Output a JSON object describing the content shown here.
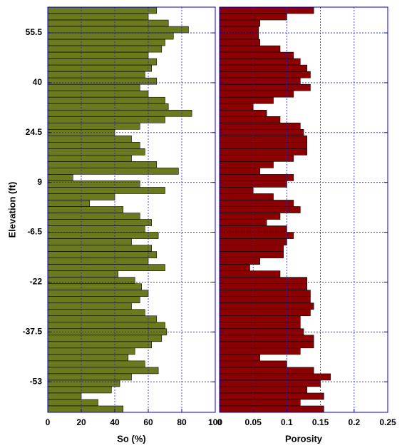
{
  "chart_data": [
    {
      "type": "bar",
      "orientation": "horizontal",
      "x_label": "So (%)",
      "y_label": "Elevation (ft)",
      "y": [
        62.5,
        60.5,
        58.5,
        56.5,
        54.5,
        52.5,
        50.5,
        48.5,
        46.5,
        44.5,
        42.5,
        40.5,
        38.5,
        36.5,
        34.5,
        32.5,
        30.5,
        28.5,
        26.5,
        24.5,
        22.5,
        20.5,
        18.5,
        16.5,
        14.5,
        12.5,
        10.5,
        8.5,
        6.5,
        4.5,
        2.5,
        0.5,
        -1.5,
        -3.5,
        -5.5,
        -7.5,
        -9.5,
        -11.5,
        -13.5,
        -15.5,
        -17.5,
        -19.5,
        -21.5,
        -23.5,
        -25.5,
        -27.5,
        -29.5,
        -31.5,
        -33.5,
        -35.5,
        -37.5,
        -39.5,
        -41.5,
        -43.5,
        -45.5,
        -47.5,
        -49.5,
        -51.5,
        -53.5,
        -55.5,
        -57.5,
        -59.5,
        -61.5
      ],
      "values": [
        65,
        60,
        72,
        84,
        75,
        70,
        68,
        60,
        65,
        62,
        58,
        65,
        55,
        60,
        70,
        72,
        86,
        70,
        55,
        40,
        50,
        55,
        58,
        50,
        65,
        78,
        15,
        55,
        70,
        40,
        25,
        45,
        55,
        62,
        58,
        66,
        50,
        62,
        65,
        60,
        70,
        42,
        52,
        56,
        60,
        55,
        50,
        58,
        65,
        70,
        71,
        68,
        62,
        52,
        48,
        58,
        66,
        50,
        43,
        38,
        20,
        30,
        45
      ],
      "color": "#6b7a1e",
      "xlim": [
        0,
        100
      ],
      "xticks": [
        0,
        20,
        40,
        60,
        80,
        100
      ],
      "ylim": [
        -62.5,
        63.5
      ],
      "yticks": [
        55.5,
        40,
        24.5,
        9,
        -6.5,
        -22,
        -37.5,
        -53
      ],
      "grid": true
    },
    {
      "type": "bar",
      "orientation": "horizontal",
      "x_label": "Porosity",
      "y": [
        62.5,
        60.5,
        58.5,
        56.5,
        54.5,
        52.5,
        50.5,
        48.5,
        46.5,
        44.5,
        42.5,
        40.5,
        38.5,
        36.5,
        34.5,
        32.5,
        30.5,
        28.5,
        26.5,
        24.5,
        22.5,
        20.5,
        18.5,
        16.5,
        14.5,
        12.5,
        10.5,
        8.5,
        6.5,
        4.5,
        2.5,
        0.5,
        -1.5,
        -3.5,
        -5.5,
        -7.5,
        -9.5,
        -11.5,
        -13.5,
        -15.5,
        -17.5,
        -19.5,
        -21.5,
        -23.5,
        -25.5,
        -27.5,
        -29.5,
        -31.5,
        -33.5,
        -35.5,
        -37.5,
        -39.5,
        -41.5,
        -43.5,
        -45.5,
        -47.5,
        -49.5,
        -51.5,
        -53.5,
        -55.5,
        -57.5,
        -59.5,
        -61.5
      ],
      "values": [
        0.14,
        0.1,
        0.06,
        0.058,
        0.058,
        0.06,
        0.09,
        0.11,
        0.12,
        0.13,
        0.135,
        0.12,
        0.135,
        0.11,
        0.08,
        0.05,
        0.07,
        0.09,
        0.12,
        0.125,
        0.13,
        0.13,
        0.13,
        0.11,
        0.08,
        0.06,
        0.11,
        0.1,
        0.05,
        0.08,
        0.11,
        0.12,
        0.09,
        0.07,
        0.1,
        0.11,
        0.1,
        0.095,
        0.095,
        0.06,
        0.045,
        0.09,
        0.13,
        0.13,
        0.135,
        0.135,
        0.14,
        0.135,
        0.12,
        0.12,
        0.125,
        0.14,
        0.14,
        0.12,
        0.06,
        0.1,
        0.14,
        0.165,
        0.15,
        0.13,
        0.155,
        0.12,
        0.155
      ],
      "color": "#8b0000",
      "xlim": [
        0,
        0.25
      ],
      "xticks": [
        0,
        0.05,
        0.1,
        0.15,
        0.2,
        0.25
      ],
      "ylim": [
        -62.5,
        63.5
      ],
      "grid": true
    }
  ]
}
